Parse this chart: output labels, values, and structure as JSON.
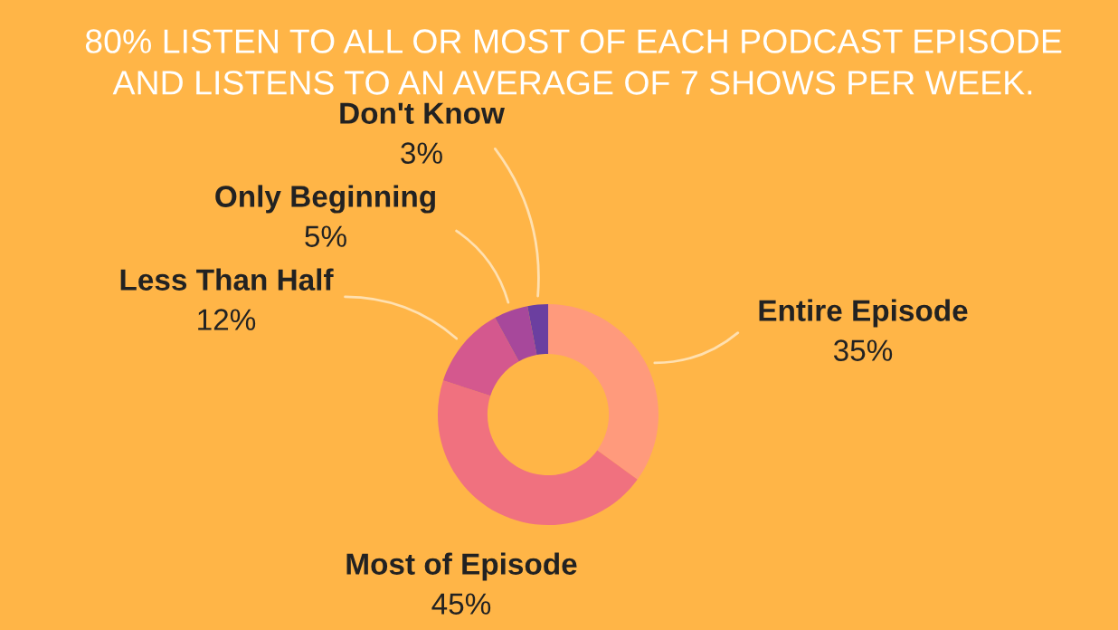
{
  "chart_data": {
    "type": "donut",
    "title": "80% LISTEN TO ALL OR MOST OF EACH PODCAST EPISODE\nAND LISTENS TO AN AVERAGE OF 7 SHOWS PER WEEK.",
    "categories": [
      "Entire Episode",
      "Most of Episode",
      "Less Than Half",
      "Only Beginning",
      "Don't Know"
    ],
    "values": [
      35,
      45,
      12,
      5,
      3
    ],
    "value_labels": [
      "35%",
      "45%",
      "12%",
      "5%",
      "3%"
    ],
    "colors": [
      "#ff9a7c",
      "#f0717f",
      "#d4588e",
      "#a7489b",
      "#6b3fa0"
    ],
    "legend": false
  }
}
